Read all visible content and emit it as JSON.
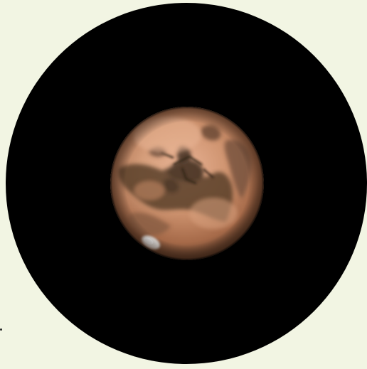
{
  "scene": {
    "subject": "planet-mars",
    "colors": {
      "page_background": "#f2f5e3",
      "eyepiece_field": "#000000",
      "planet_light": "#e6ab88",
      "planet_mid": "#c98a62",
      "planet_dark": "#3b2a1e",
      "dark_markings": "#3a2c20",
      "polar_cap": "#f4f1ee",
      "speck": "#2a2a2a"
    }
  }
}
